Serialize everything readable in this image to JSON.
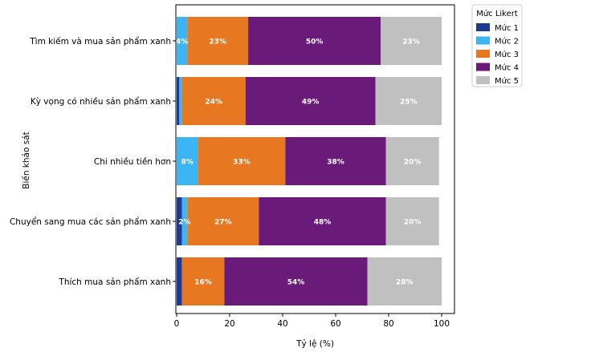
{
  "chart_data": {
    "type": "bar",
    "orientation": "horizontal",
    "stacked": true,
    "title": "",
    "xlabel": "Tỷ lệ (%)",
    "ylabel": "Biến khảo sát",
    "xlim": [
      0,
      100
    ],
    "xticks": [
      0,
      20,
      40,
      60,
      80,
      100
    ],
    "grid": false,
    "legend_title": "Mức Likert",
    "legend_position": "outside-top-right",
    "categories": [
      "Tìm kiếm và mua sản phẩm xanh",
      "Kỳ vọng có nhiều sản phẩm xanh",
      "Chi nhiều tiền hơn",
      "Chuyển sang mua các sản phẩm xanh",
      "Thích mua sản phẩm xanh"
    ],
    "series": [
      {
        "name": "Mức 1",
        "color": "#1f3a93",
        "values": [
          0,
          1,
          0,
          2,
          2
        ],
        "labels": [
          "",
          "",
          "",
          "",
          ""
        ]
      },
      {
        "name": "Mức 2",
        "color": "#3db5f5",
        "values": [
          4,
          1,
          8,
          2,
          0
        ],
        "labels": [
          "4%",
          "",
          "8%",
          "2%",
          ""
        ]
      },
      {
        "name": "Mức 3",
        "color": "#e87722",
        "values": [
          23,
          24,
          33,
          27,
          16
        ],
        "labels": [
          "23%",
          "24%",
          "33%",
          "27%",
          "16%"
        ]
      },
      {
        "name": "Mức 4",
        "color": "#6a1b7a",
        "values": [
          50,
          49,
          38,
          48,
          54
        ],
        "labels": [
          "50%",
          "49%",
          "38%",
          "48%",
          "54%"
        ]
      },
      {
        "name": "Mức 5",
        "color": "#c0c0c0",
        "values": [
          23,
          25,
          20,
          20,
          28
        ],
        "labels": [
          "23%",
          "25%",
          "20%",
          "20%",
          "28%"
        ]
      }
    ]
  }
}
